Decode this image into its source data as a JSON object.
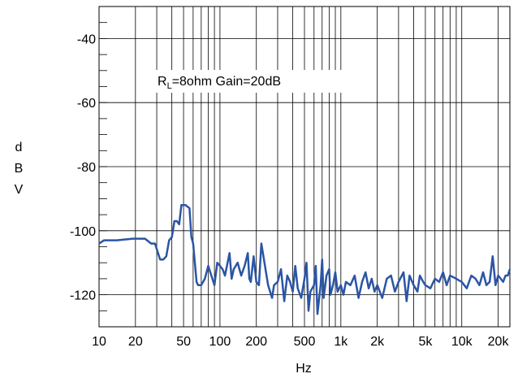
{
  "chart_data": {
    "type": "line",
    "xscale": "log",
    "xlim": [
      10,
      25000
    ],
    "ylim": [
      -130,
      -30
    ],
    "grid": true,
    "xlabel": "Hz",
    "ylabel_letters": [
      "d",
      "B",
      "V"
    ],
    "annotation": {
      "base": "R",
      "sub": "L",
      "rest": "=8ohm Gain=20dB"
    },
    "xticks": [
      {
        "v": 10,
        "t": "10"
      },
      {
        "v": 20,
        "t": "20"
      },
      {
        "v": 50,
        "t": "50"
      },
      {
        "v": 100,
        "t": "100"
      },
      {
        "v": 200,
        "t": "200"
      },
      {
        "v": 500,
        "t": "500"
      },
      {
        "v": 1000,
        "t": "1k"
      },
      {
        "v": 2000,
        "t": "2k"
      },
      {
        "v": 5000,
        "t": "5k"
      },
      {
        "v": 10000,
        "t": "10k"
      },
      {
        "v": 20000,
        "t": "20k"
      }
    ],
    "yticks": [
      {
        "v": -40,
        "t": "-40"
      },
      {
        "v": -60,
        "t": "-60"
      },
      {
        "v": -80,
        "t": "-80"
      },
      {
        "v": -100,
        "t": "-100"
      },
      {
        "v": -120,
        "t": "-120"
      }
    ],
    "series": [
      {
        "color": "#2b55a5",
        "x": [
          10,
          11,
          14,
          19,
          24,
          27,
          29,
          32,
          34,
          36,
          38,
          40,
          42,
          44,
          46,
          48,
          52,
          56,
          58,
          60,
          62,
          64,
          66,
          70,
          75,
          80,
          90,
          95,
          100,
          105,
          110,
          120,
          125,
          130,
          140,
          150,
          160,
          170,
          175,
          180,
          190,
          200,
          210,
          220,
          250,
          270,
          280,
          300,
          320,
          340,
          360,
          380,
          400,
          420,
          440,
          470,
          500,
          520,
          540,
          560,
          600,
          620,
          640,
          680,
          700,
          720,
          760,
          800,
          820,
          860,
          900,
          940,
          1000,
          1050,
          1100,
          1200,
          1300,
          1400,
          1500,
          1600,
          1700,
          1800,
          1900,
          2000,
          2200,
          2400,
          2600,
          2800,
          3000,
          3300,
          3500,
          3700,
          4000,
          4300,
          4500,
          4800,
          5000,
          5500,
          6000,
          6500,
          7000,
          7500,
          8000,
          9000,
          10000,
          11000,
          12000,
          13000,
          14000,
          15000,
          16000,
          17000,
          18000,
          19000,
          20000,
          21000,
          22000,
          23000,
          24000,
          25000
        ],
        "y": [
          -104,
          -103,
          -103,
          -102.5,
          -102.5,
          -104,
          -104,
          -109,
          -109,
          -108,
          -103,
          -102,
          -97,
          -97,
          -98,
          -92,
          -92,
          -93,
          -102,
          -104,
          -110,
          -116,
          -117,
          -117,
          -115,
          -111,
          -117,
          -110,
          -111,
          -112,
          -114,
          -107,
          -115,
          -112,
          -110,
          -114,
          -111,
          -107,
          -115,
          -116,
          -108,
          -116,
          -117,
          -104,
          -117,
          -121,
          -117,
          -116,
          -112,
          -122,
          -114,
          -116,
          -119,
          -111,
          -118,
          -121,
          -115,
          -110,
          -125,
          -119,
          -117,
          -111,
          -126,
          -117,
          -109,
          -121,
          -114,
          -112,
          -120,
          -117,
          -113,
          -119,
          -117,
          -120,
          -116,
          -117,
          -114,
          -121,
          -116,
          -113,
          -118,
          -115,
          -119,
          -117,
          -121,
          -115,
          -114,
          -119,
          -116,
          -113,
          -122,
          -114,
          -117,
          -119,
          -114,
          -116,
          -117,
          -118,
          -115,
          -116,
          -113,
          -117,
          -114,
          -115,
          -116,
          -118,
          -114,
          -115,
          -117,
          -113,
          -117,
          -116,
          -108,
          -117,
          -114,
          -115,
          -116,
          -114,
          -114,
          -112
        ]
      }
    ]
  }
}
